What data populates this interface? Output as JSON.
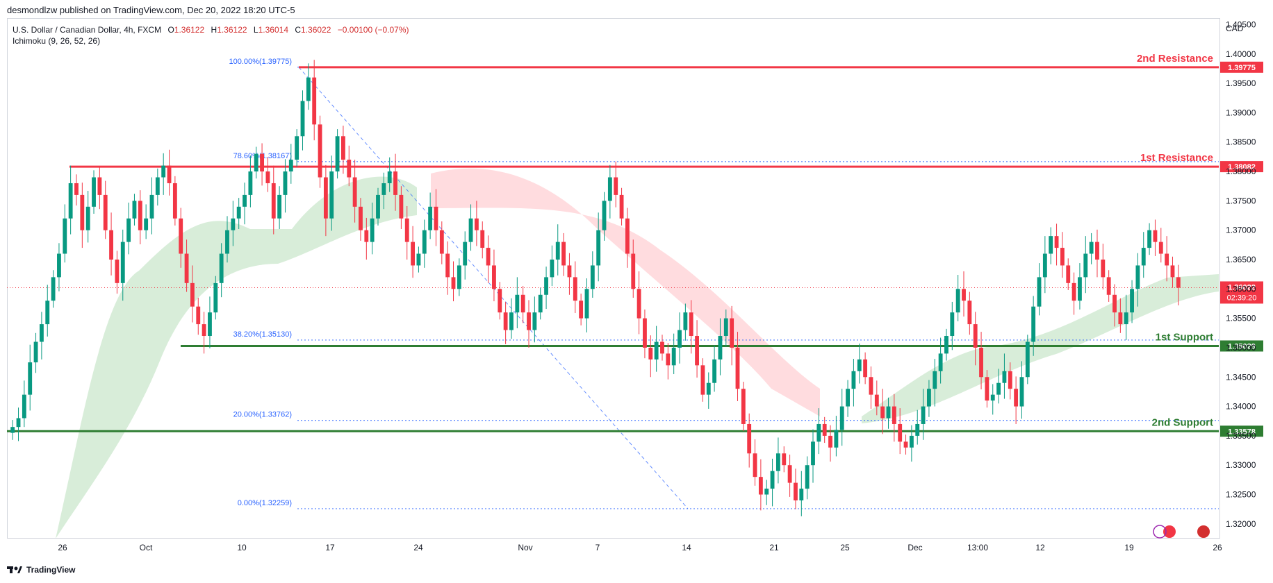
{
  "header": {
    "published": "desmondlzw published on TradingView.com, Dec 20, 2022 18:20 UTC-5",
    "symbol": "U.S. Dollar / Canadian Dollar, 4h, FXCM",
    "o_label": "O",
    "o": "1.36122",
    "h_label": "H",
    "h": "1.36122",
    "l_label": "L",
    "l": "1.36014",
    "c_label": "C",
    "c": "1.36022",
    "change": "−0.00100 (−0.07%)",
    "indicator": "Ichimoku (9, 26, 52, 26)",
    "currency": "CAD"
  },
  "footer": {
    "brand": "TradingView"
  },
  "chart_data": {
    "type": "candlestick",
    "ylim": [
      1.3175,
      1.406
    ],
    "y_ticks": [
      "1.40500",
      "1.40000",
      "1.39500",
      "1.39000",
      "1.38500",
      "1.38000",
      "1.37500",
      "1.37000",
      "1.36500",
      "1.36000",
      "1.35500",
      "1.35000",
      "1.34500",
      "1.34000",
      "1.33500",
      "1.33000",
      "1.32500",
      "1.32000"
    ],
    "x_ticks": [
      "26",
      "Oct",
      "10",
      "17",
      "24",
      "Nov",
      "7",
      "14",
      "21",
      "25",
      "Dec",
      "13:00",
      "12",
      "19",
      "26"
    ],
    "current_price": "1.36022",
    "countdown": "02:39:20",
    "levels": [
      {
        "name": "2nd Resistance",
        "value": 1.39775,
        "label": "1.39775",
        "color": "#f23645"
      },
      {
        "name": "1st Resistance",
        "value": 1.38082,
        "label": "1.38082",
        "color": "#f23645"
      },
      {
        "name": "1st Support",
        "value": 1.35029,
        "label": "1.35029",
        "color": "#2e7d32"
      },
      {
        "name": "2nd Support",
        "value": 1.33578,
        "label": "1.33578",
        "color": "#2e7d32"
      }
    ],
    "fibonacci": [
      {
        "label": "100.00%(1.39775)",
        "value": 1.39775
      },
      {
        "label": "78.60%(1.38167)",
        "value": 1.38167
      },
      {
        "label": "38.20%(1.35130)",
        "value": 1.3513
      },
      {
        "label": "20.00%(1.33762)",
        "value": 1.33762
      },
      {
        "label": "0.00%(1.32259)",
        "value": 1.32259
      }
    ],
    "closes": [
      1.3365,
      1.338,
      1.342,
      1.3475,
      1.351,
      1.354,
      1.358,
      1.362,
      1.366,
      1.372,
      1.378,
      1.376,
      1.37,
      1.374,
      1.379,
      1.376,
      1.37,
      1.365,
      1.361,
      1.368,
      1.372,
      1.375,
      1.37,
      1.372,
      1.376,
      1.379,
      1.381,
      1.378,
      1.372,
      1.366,
      1.361,
      1.357,
      1.354,
      1.352,
      1.356,
      1.361,
      1.366,
      1.37,
      1.372,
      1.374,
      1.376,
      1.38,
      1.383,
      1.38,
      1.378,
      1.372,
      1.376,
      1.38,
      1.382,
      1.386,
      1.392,
      1.396,
      1.388,
      1.379,
      1.372,
      1.38,
      1.386,
      1.382,
      1.379,
      1.374,
      1.37,
      1.368,
      1.372,
      1.376,
      1.378,
      1.38,
      1.376,
      1.372,
      1.368,
      1.364,
      1.366,
      1.37,
      1.374,
      1.37,
      1.366,
      1.362,
      1.36,
      1.364,
      1.368,
      1.372,
      1.37,
      1.367,
      1.364,
      1.36,
      1.356,
      1.353,
      1.356,
      1.359,
      1.356,
      1.353,
      1.356,
      1.359,
      1.362,
      1.365,
      1.368,
      1.364,
      1.362,
      1.358,
      1.355,
      1.36,
      1.364,
      1.37,
      1.375,
      1.379,
      1.376,
      1.372,
      1.366,
      1.36,
      1.355,
      1.35,
      1.348,
      1.351,
      1.349,
      1.347,
      1.35,
      1.353,
      1.356,
      1.352,
      1.347,
      1.342,
      1.344,
      1.348,
      1.352,
      1.355,
      1.35,
      1.343,
      1.337,
      1.332,
      1.328,
      1.325,
      1.326,
      1.329,
      1.332,
      1.33,
      1.327,
      1.324,
      1.326,
      1.33,
      1.334,
      1.337,
      1.335,
      1.333,
      1.336,
      1.34,
      1.343,
      1.346,
      1.348,
      1.345,
      1.342,
      1.34,
      1.338,
      1.34,
      1.337,
      1.334,
      1.333,
      1.335,
      1.337,
      1.34,
      1.343,
      1.346,
      1.349,
      1.352,
      1.356,
      1.36,
      1.358,
      1.354,
      1.35,
      1.345,
      1.341,
      1.342,
      1.344,
      1.346,
      1.343,
      1.34,
      1.345,
      1.351,
      1.357,
      1.362,
      1.366,
      1.369,
      1.367,
      1.364,
      1.361,
      1.358,
      1.362,
      1.366,
      1.368,
      1.365,
      1.362,
      1.359,
      1.356,
      1.354,
      1.356,
      1.36,
      1.364,
      1.367,
      1.37,
      1.368,
      1.366,
      1.364,
      1.362,
      1.3602
    ]
  }
}
